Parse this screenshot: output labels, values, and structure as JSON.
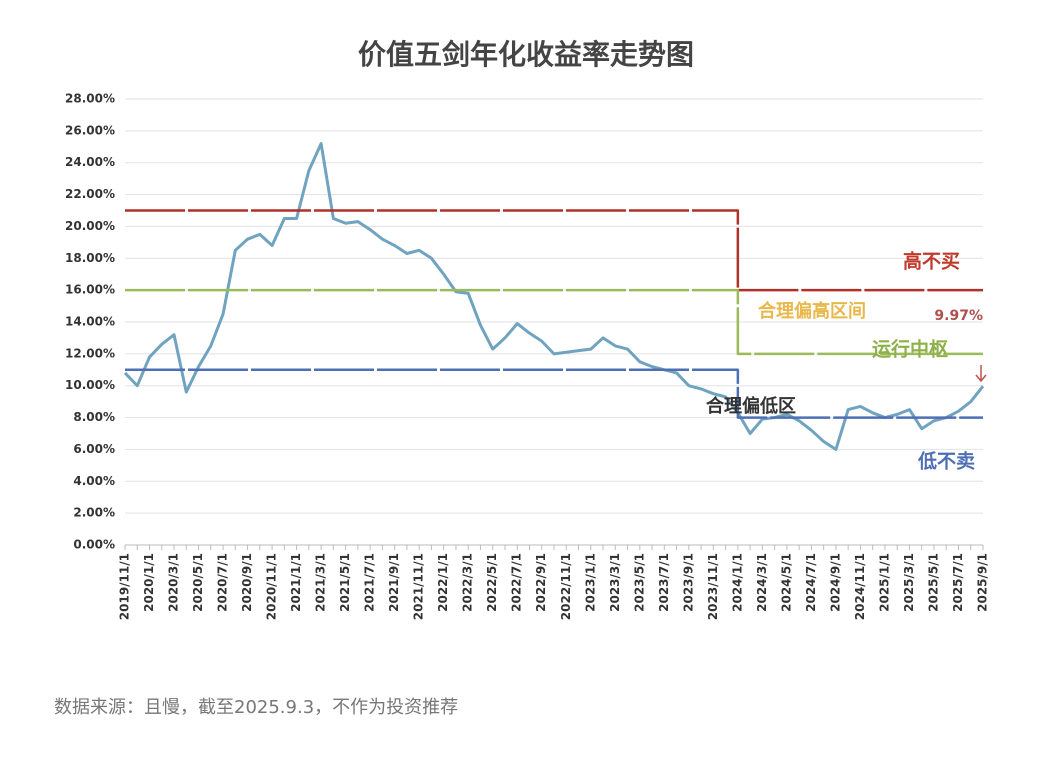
{
  "chart_data": {
    "type": "line",
    "title": "价值五剑年化收益率走势图",
    "categories": [
      "2019/11/1",
      null,
      "2020/1/1",
      null,
      "2020/3/1",
      null,
      "2020/5/1",
      null,
      "2020/7/1",
      null,
      "2020/9/1",
      null,
      "2020/11/1",
      null,
      "2021/1/1",
      null,
      "2021/3/1",
      null,
      "2021/5/1",
      null,
      "2021/7/1",
      null,
      "2021/9/1",
      null,
      "2021/11/1",
      null,
      "2022/1/1",
      null,
      "2022/3/1",
      null,
      "2022/5/1",
      null,
      "2022/7/1",
      null,
      "2022/9/1",
      null,
      "2022/11/1",
      null,
      "2023/1/1",
      null,
      "2023/3/1",
      null,
      "2023/5/1",
      null,
      "2023/7/1",
      null,
      "2023/9/1",
      null,
      "2023/11/1",
      null,
      "2024/1/1",
      null,
      "2024/3/1",
      null,
      "2024/5/1",
      null,
      "2024/7/1",
      null,
      "2024/9/1",
      null,
      "2024/11/1",
      null,
      "2025/1/1",
      null,
      "2025/3/1",
      null,
      "2025/5/1",
      null,
      "2025/7/1",
      null,
      "2025/9/1"
    ],
    "series": [
      {
        "name": null,
        "color": "#6fa3c0",
        "style": "data",
        "values": [
          10.8,
          10.0,
          11.8,
          12.6,
          13.2,
          9.6,
          11.2,
          12.5,
          14.5,
          18.5,
          19.2,
          19.5,
          18.8,
          20.5,
          20.5,
          23.5,
          25.2,
          20.5,
          20.2,
          20.3,
          19.8,
          19.2,
          18.8,
          18.3,
          18.5,
          18.0,
          17.0,
          15.9,
          15.8,
          13.8,
          12.3,
          13.0,
          13.9,
          13.3,
          12.8,
          12.0,
          12.1,
          12.2,
          12.3,
          13.0,
          12.5,
          12.3,
          11.5,
          11.2,
          11.0,
          10.8,
          10.0,
          9.8,
          9.5,
          9.3,
          8.3,
          7.0,
          7.9,
          8.0,
          8.2,
          7.8,
          7.2,
          6.5,
          6.0,
          8.5,
          8.7,
          8.3,
          8.0,
          8.2,
          8.5,
          7.3,
          7.8,
          8.0,
          8.4,
          9.0,
          9.97
        ],
        "value_labels": [
          null,
          null,
          null,
          null,
          null,
          null,
          null,
          null,
          null,
          null,
          null,
          null,
          null,
          null,
          null,
          null,
          null,
          null,
          null,
          null,
          null,
          null,
          null,
          null,
          null,
          null,
          null,
          null,
          null,
          null,
          null,
          null,
          null,
          null,
          null,
          null,
          null,
          null,
          null,
          null,
          null,
          null,
          null,
          null,
          null,
          null,
          null,
          null,
          null,
          null,
          null,
          null,
          null,
          null,
          null,
          null,
          null,
          null,
          null,
          null,
          null,
          null,
          null,
          null,
          null,
          null,
          null,
          null,
          null,
          null,
          "9.97%"
        ]
      },
      {
        "name": "高不买",
        "color": "#b0302a",
        "style": "step",
        "values": [
          21,
          21,
          21,
          21,
          21,
          21,
          21,
          21,
          21,
          21,
          21,
          21,
          21,
          21,
          21,
          21,
          21,
          21,
          21,
          21,
          21,
          21,
          21,
          21,
          21,
          21,
          21,
          21,
          21,
          21,
          21,
          21,
          21,
          21,
          21,
          21,
          21,
          21,
          21,
          21,
          21,
          21,
          21,
          21,
          21,
          21,
          21,
          21,
          21,
          21,
          16,
          16,
          16,
          16,
          16,
          16,
          16,
          16,
          16,
          16,
          16,
          16,
          16,
          16,
          16,
          16,
          16,
          16,
          16,
          16,
          16
        ]
      },
      {
        "name": "运行中枢",
        "color": "#9bbb59",
        "style": "step",
        "values": [
          16,
          16,
          16,
          16,
          16,
          16,
          16,
          16,
          16,
          16,
          16,
          16,
          16,
          16,
          16,
          16,
          16,
          16,
          16,
          16,
          16,
          16,
          16,
          16,
          16,
          16,
          16,
          16,
          16,
          16,
          16,
          16,
          16,
          16,
          16,
          16,
          16,
          16,
          16,
          16,
          16,
          16,
          16,
          16,
          16,
          16,
          16,
          16,
          16,
          16,
          12,
          12,
          12,
          12,
          12,
          12,
          12,
          12,
          12,
          12,
          12,
          12,
          12,
          12,
          12,
          12,
          12,
          12,
          12,
          12,
          12
        ]
      },
      {
        "name": "低不卖",
        "color": "#4f6fb5",
        "style": "step",
        "values": [
          11,
          11,
          11,
          11,
          11,
          11,
          11,
          11,
          11,
          11,
          11,
          11,
          11,
          11,
          11,
          11,
          11,
          11,
          11,
          11,
          11,
          11,
          11,
          11,
          11,
          11,
          11,
          11,
          11,
          11,
          11,
          11,
          11,
          11,
          11,
          11,
          11,
          11,
          11,
          11,
          11,
          11,
          11,
          11,
          11,
          11,
          11,
          11,
          11,
          11,
          8,
          8,
          8,
          8,
          8,
          8,
          8,
          8,
          8,
          8,
          8,
          8,
          8,
          8,
          8,
          8,
          8,
          8,
          8,
          8,
          8
        ]
      }
    ],
    "annotations": [
      "合理偏高区间",
      "合理偏低区"
    ],
    "ylim": [
      0,
      28
    ],
    "yticks": [
      {
        "value": 0,
        "label": "0.00%"
      },
      {
        "value": 2,
        "label": "2.00%"
      },
      {
        "value": 4,
        "label": "4.00%"
      },
      {
        "value": 6,
        "label": "6.00%"
      },
      {
        "value": 8,
        "label": "8.00%"
      },
      {
        "value": 10,
        "label": "10.00%"
      },
      {
        "value": 12,
        "label": "12.00%"
      },
      {
        "value": 14,
        "label": "14.00%"
      },
      {
        "value": 16,
        "label": "16.00%"
      },
      {
        "value": 18,
        "label": "18.00%"
      },
      {
        "value": 20,
        "label": "20.00%"
      },
      {
        "value": 22,
        "label": "22.00%"
      },
      {
        "value": 24,
        "label": "24.00%"
      },
      {
        "value": 26,
        "label": "26.00%"
      },
      {
        "value": 28,
        "label": "28.00%"
      }
    ],
    "grid": true,
    "source": "数据来源：且慢，截至2025.9.3，不作为投资推荐"
  }
}
